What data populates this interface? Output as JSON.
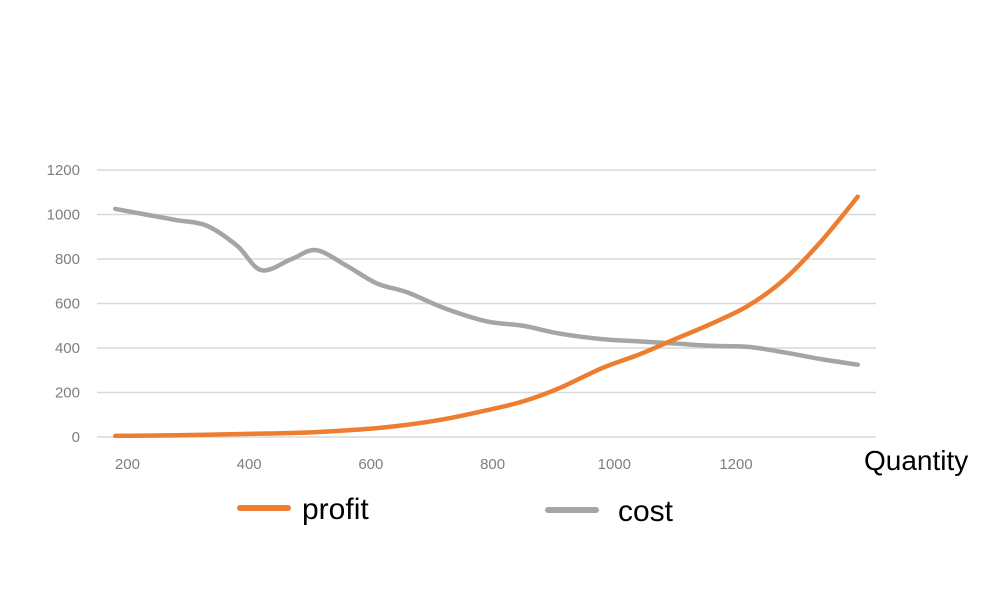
{
  "chart_data": {
    "type": "line",
    "title": "",
    "xlabel": "Quantity",
    "ylabel": "",
    "x": [
      180,
      230,
      280,
      330,
      380,
      420,
      470,
      510,
      560,
      610,
      660,
      720,
      790,
      850,
      910,
      980,
      1040,
      1100,
      1160,
      1220,
      1280,
      1340,
      1400
    ],
    "xlim": [
      150,
      1430
    ],
    "ylim": [
      0,
      1200
    ],
    "x_ticks": [
      "200",
      "400",
      "600",
      "800",
      "1000",
      "1200"
    ],
    "x_tick_values": [
      200,
      400,
      600,
      800,
      1000,
      1200
    ],
    "y_ticks": [
      "0",
      "200",
      "400",
      "600",
      "800",
      "1000",
      "1200"
    ],
    "y_tick_values": [
      0,
      200,
      400,
      600,
      800,
      1000,
      1200
    ],
    "grid": true,
    "legend_position": "bottom",
    "series": [
      {
        "name": "profit",
        "color": "#ed7d31",
        "values": [
          5,
          6,
          8,
          10,
          13,
          15,
          18,
          22,
          30,
          40,
          55,
          80,
          120,
          160,
          220,
          310,
          370,
          440,
          510,
          590,
          710,
          880,
          1080
        ]
      },
      {
        "name": "cost",
        "color": "#a5a5a5",
        "values": [
          1025,
          1000,
          975,
          950,
          860,
          750,
          800,
          840,
          770,
          690,
          650,
          580,
          520,
          500,
          465,
          440,
          430,
          420,
          410,
          405,
          380,
          350,
          325
        ]
      }
    ]
  },
  "colors": {
    "grid": "#d9d9d9",
    "tick_text": "#7f7f7f"
  }
}
